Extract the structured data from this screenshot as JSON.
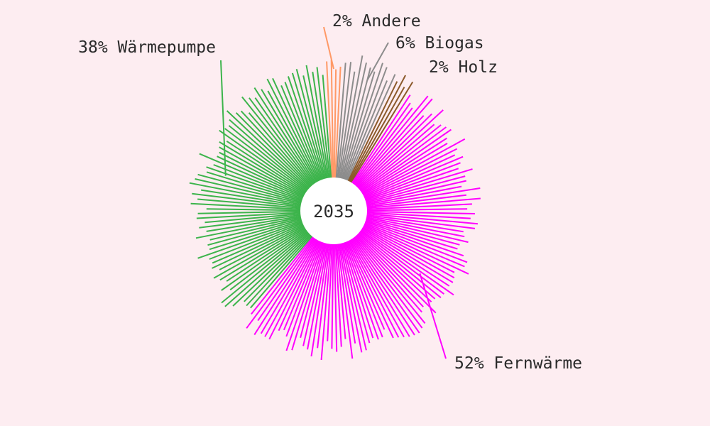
{
  "chart_data": {
    "type": "pie",
    "center_label": "2035",
    "slices": [
      {
        "name": "Fernwärme",
        "value": 52,
        "label": "52% Fernwärme",
        "color": "#ff00ff"
      },
      {
        "name": "Wärmepumpe",
        "value": 38,
        "label": "38% Wärmepumpe",
        "color": "#3cb44b"
      },
      {
        "name": "Andere",
        "value": 2,
        "label": "2% Andere",
        "color": "#ff9966"
      },
      {
        "name": "Biogas",
        "value": 6,
        "label": "6% Biogas",
        "color": "#8c8c8c"
      },
      {
        "name": "Holz",
        "value": 2,
        "label": "2% Holz",
        "color": "#8b5a2b"
      }
    ],
    "background": "#fdedf1",
    "hole_color": "#ffffff",
    "style": "radial-lines"
  }
}
